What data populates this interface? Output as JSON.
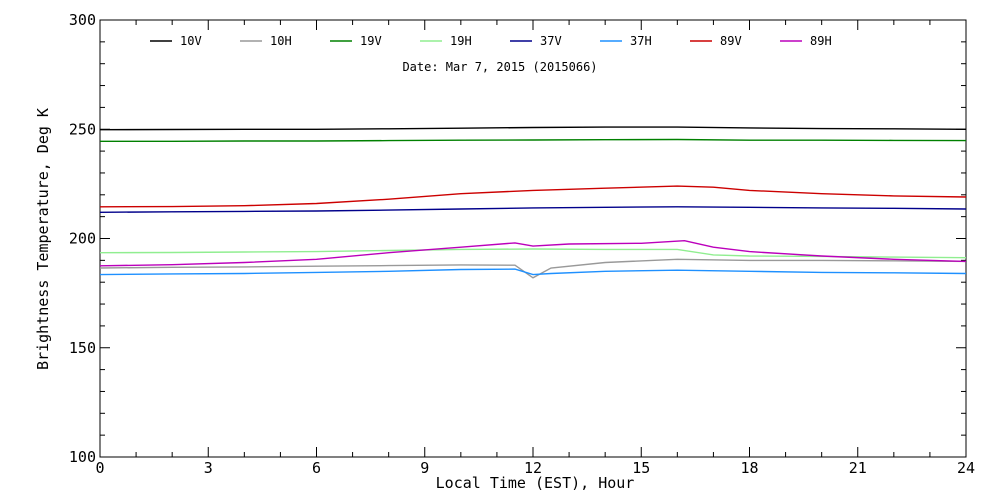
{
  "chart_data": {
    "type": "line",
    "title": "",
    "annotation": "Date: Mar  7, 2015 (2015066)",
    "xlabel": "Local Time (EST), Hour",
    "ylabel": "Brightness Temperature, Deg K",
    "xlim": [
      0,
      24
    ],
    "ylim": [
      100,
      300
    ],
    "x_ticks": [
      0,
      3,
      6,
      9,
      12,
      15,
      18,
      21,
      24
    ],
    "y_ticks": [
      100,
      150,
      200,
      250,
      300
    ],
    "grid": false,
    "legend_position": "top",
    "series": [
      {
        "name": "10V",
        "color": "#000000",
        "x": [
          0,
          2,
          4,
          6,
          8,
          10,
          12,
          14,
          16,
          18,
          20,
          22,
          24
        ],
        "y": [
          249.8,
          249.9,
          250.0,
          250.0,
          250.2,
          250.5,
          250.8,
          251.0,
          251.0,
          250.6,
          250.3,
          250.2,
          250.0
        ]
      },
      {
        "name": "10H",
        "color": "#999999",
        "x": [
          0,
          2,
          4,
          6,
          8,
          10,
          11.5,
          12,
          12.5,
          14,
          16,
          18,
          20,
          22,
          24
        ],
        "y": [
          186.5,
          186.8,
          187.0,
          187.3,
          187.6,
          187.9,
          187.8,
          182.0,
          186.5,
          189.0,
          190.5,
          190.0,
          190.0,
          189.8,
          189.5
        ]
      },
      {
        "name": "19V",
        "color": "#008000",
        "x": [
          0,
          2,
          4,
          6,
          8,
          10,
          12,
          14,
          16,
          18,
          20,
          22,
          24
        ],
        "y": [
          244.5,
          244.5,
          244.6,
          244.6,
          244.8,
          245.0,
          245.1,
          245.2,
          245.3,
          245.0,
          245.0,
          244.9,
          244.8
        ]
      },
      {
        "name": "19H",
        "color": "#90ee90",
        "x": [
          0,
          2,
          4,
          6,
          8,
          10,
          12,
          14,
          16,
          17,
          18,
          20,
          22,
          24
        ],
        "y": [
          193.5,
          193.6,
          193.8,
          194.0,
          194.5,
          195.0,
          195.2,
          195.0,
          195.0,
          192.5,
          192.0,
          191.8,
          191.5,
          191.2
        ]
      },
      {
        "name": "37V",
        "color": "#00008b",
        "x": [
          0,
          2,
          4,
          6,
          8,
          10,
          12,
          14,
          16,
          18,
          20,
          22,
          24
        ],
        "y": [
          212.0,
          212.2,
          212.4,
          212.6,
          213.0,
          213.5,
          214.0,
          214.3,
          214.5,
          214.3,
          214.0,
          213.8,
          213.5
        ]
      },
      {
        "name": "37H",
        "color": "#1e90ff",
        "x": [
          0,
          2,
          4,
          6,
          8,
          10,
          11.5,
          12,
          12.5,
          14,
          16,
          18,
          20,
          22,
          24
        ],
        "y": [
          183.5,
          183.8,
          184.0,
          184.5,
          185.0,
          185.8,
          186.0,
          183.5,
          184.0,
          185.0,
          185.5,
          185.0,
          184.5,
          184.3,
          184.0
        ]
      },
      {
        "name": "89V",
        "color": "#cc0000",
        "x": [
          0,
          2,
          4,
          6,
          8,
          10,
          12,
          14,
          16,
          17,
          18,
          20,
          22,
          24
        ],
        "y": [
          214.5,
          214.6,
          215.0,
          216.0,
          218.0,
          220.5,
          222.0,
          223.0,
          224.0,
          223.5,
          222.0,
          220.5,
          219.5,
          219.0
        ]
      },
      {
        "name": "89H",
        "color": "#bb00bb",
        "x": [
          0,
          2,
          4,
          6,
          8,
          10,
          11.5,
          12,
          13,
          15,
          16.2,
          17,
          18,
          20,
          22,
          24
        ],
        "y": [
          187.5,
          188.0,
          189.0,
          190.5,
          193.5,
          196.0,
          198.0,
          196.5,
          197.5,
          197.8,
          199.0,
          196.0,
          194.0,
          192.0,
          190.5,
          189.5
        ]
      }
    ]
  }
}
